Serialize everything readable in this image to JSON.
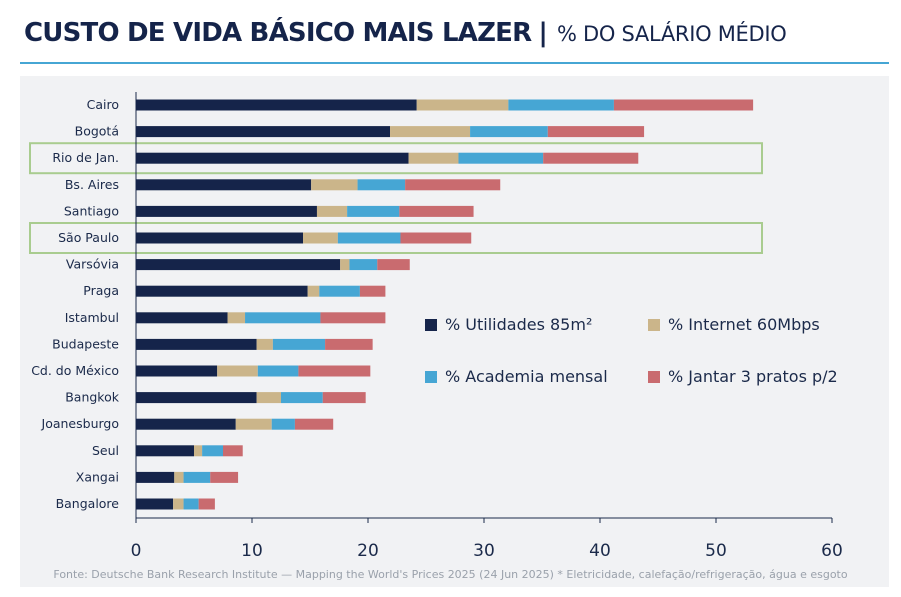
{
  "header": {
    "title_main": "CUSTO DE VIDA BÁSICO MAIS LAZER",
    "separator": "|",
    "title_sub": "% DO SALÁRIO MÉDIO"
  },
  "source": "Fonte: Deutsche Bank Research Institute — Mapping the World's Prices 2025 (24 Jun 2025) * Eletricidade, calefação/refrigeração, água e esgoto",
  "chart_data": {
    "type": "bar",
    "orientation": "horizontal",
    "stacked": true,
    "categories": [
      "Cairo",
      "Bogotá",
      "Rio de Jan.",
      "Bs. Aires",
      "Santiago",
      "São Paulo",
      "Varsóvia",
      "Praga",
      "Istambul",
      "Budapeste",
      "Cd. do México",
      "Bangkok",
      "Joanesburgo",
      "Seul",
      "Xangai",
      "Bangalore"
    ],
    "highlighted": [
      "Rio de Jan.",
      "São Paulo"
    ],
    "series": [
      {
        "name": "% Utilidades 85m²",
        "color": "#15244a",
        "values": [
          24.2,
          21.9,
          23.5,
          15.1,
          15.6,
          14.4,
          17.6,
          14.8,
          7.9,
          10.4,
          7.0,
          10.4,
          8.6,
          5.0,
          3.3,
          3.2
        ]
      },
      {
        "name": "% Internet 60Mbps",
        "color": "#cbb58a",
        "values": [
          7.9,
          6.9,
          4.3,
          4.0,
          2.6,
          3.0,
          0.8,
          1.0,
          1.5,
          1.4,
          3.5,
          2.1,
          3.1,
          0.7,
          0.8,
          0.9
        ]
      },
      {
        "name": "% Academia mensal",
        "color": "#46a6d4",
        "values": [
          9.1,
          6.7,
          7.3,
          4.1,
          4.5,
          5.4,
          2.4,
          3.5,
          6.5,
          4.5,
          3.5,
          3.6,
          2.0,
          1.8,
          2.3,
          1.3
        ]
      },
      {
        "name": "% Jantar 3 pratos p/2",
        "color": "#c96b6f",
        "values": [
          12.0,
          8.3,
          8.2,
          8.2,
          6.4,
          6.1,
          2.8,
          2.2,
          5.6,
          4.1,
          6.2,
          3.7,
          3.3,
          1.7,
          2.4,
          1.4
        ]
      }
    ],
    "xlim": [
      0,
      60
    ],
    "xticks": [
      0,
      10,
      20,
      30,
      40,
      50,
      60
    ],
    "xlabel": "",
    "ylabel": "",
    "grid": false,
    "legend_position": "center-right"
  }
}
